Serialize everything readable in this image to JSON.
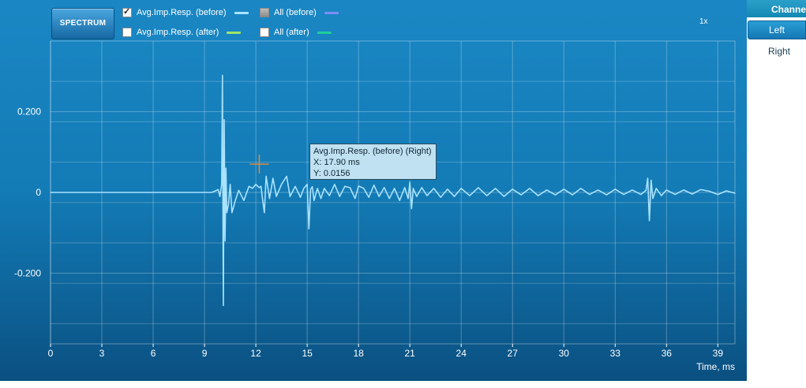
{
  "toolbar": {
    "spectrum_label": "SPECTRUM",
    "zoom_label": "1x"
  },
  "legend": [
    {
      "label": "Avg.Imp.Resp. (before)",
      "checked": true,
      "color": "#a9e3ff"
    },
    {
      "label": "All (before)",
      "checked": "partial",
      "color": "#7d8ff5"
    },
    {
      "label": "Avg.Imp.Resp. (after)",
      "checked": false,
      "color": "#9ee36a"
    },
    {
      "label": "All (after)",
      "checked": false,
      "color": "#1fcf9c"
    }
  ],
  "channel_selector": {
    "title": "Channe",
    "options": [
      "Left",
      "Right"
    ],
    "selected": "Left"
  },
  "tooltip": {
    "title": "Avg.Imp.Resp. (before) (Right)",
    "x_text": "X: 17.90 ms",
    "y_text": "Y: 0.0156"
  },
  "chart_data": {
    "type": "line",
    "xlabel": "Time, ms",
    "ylabel": "",
    "xlim": [
      0,
      40
    ],
    "ylim": [
      -0.375,
      0.375
    ],
    "x_ticks": [
      0,
      3,
      6,
      9,
      12,
      15,
      18,
      21,
      24,
      27,
      30,
      33,
      36,
      39
    ],
    "x_tick_labels": [
      "0",
      "3",
      "6",
      "9",
      "12",
      "15",
      "18",
      "21",
      "24",
      "27",
      "30",
      "33",
      "36",
      "39"
    ],
    "y_ticks": [
      0.2,
      0,
      -0.2
    ],
    "y_tick_labels": [
      "0.200",
      "0",
      "-0.200"
    ],
    "grid": true,
    "cursor": {
      "x": 12.2,
      "y": 0.07
    },
    "series": [
      {
        "name": "Avg.Imp.Resp. (before)",
        "color": "#a9e3ff",
        "x": [
          0,
          9.4,
          9.6,
          9.8,
          9.9,
          10.0,
          10.05,
          10.1,
          10.15,
          10.2,
          10.25,
          10.3,
          10.4,
          10.5,
          10.6,
          10.8,
          11.0,
          11.3,
          11.6,
          11.8,
          12.0,
          12.2,
          12.3,
          12.4,
          12.5,
          12.6,
          12.8,
          13.0,
          13.2,
          13.5,
          13.8,
          14.0,
          14.3,
          14.6,
          14.8,
          15.0,
          15.1,
          15.2,
          15.3,
          15.4,
          15.6,
          15.8,
          16.0,
          16.3,
          16.6,
          16.9,
          17.2,
          17.5,
          17.8,
          18.0,
          18.3,
          18.6,
          18.9,
          19.2,
          19.5,
          19.8,
          20.1,
          20.4,
          20.7,
          20.9,
          21.0,
          21.1,
          21.2,
          21.4,
          21.7,
          22.0,
          22.4,
          22.8,
          23.2,
          23.6,
          24.0,
          24.5,
          25.0,
          25.5,
          26.0,
          26.5,
          27.0,
          27.5,
          28.0,
          28.5,
          29.0,
          29.5,
          30.0,
          30.5,
          31.0,
          31.5,
          32.0,
          32.5,
          33.0,
          33.5,
          34.0,
          34.5,
          34.8,
          34.9,
          35.0,
          35.1,
          35.2,
          35.4,
          35.7,
          36.0,
          36.5,
          37.0,
          37.5,
          38.0,
          38.5,
          39.0,
          39.5,
          40.0
        ],
        "y": [
          0,
          0,
          0.003,
          0.007,
          -0.01,
          0.02,
          0.29,
          -0.28,
          0.18,
          -0.12,
          0.06,
          -0.05,
          -0.03,
          0.02,
          -0.05,
          -0.02,
          0.005,
          -0.02,
          0.015,
          0.01,
          0.02,
          0.012,
          0.015,
          -0.02,
          -0.05,
          0.04,
          -0.015,
          0.035,
          -0.01,
          0.02,
          0.04,
          -0.01,
          0.015,
          -0.012,
          0.01,
          0.02,
          -0.09,
          0.008,
          0.014,
          -0.02,
          0.01,
          -0.015,
          0.01,
          -0.008,
          0.02,
          -0.01,
          0.015,
          0.012,
          -0.015,
          0.016,
          0.01,
          -0.012,
          0.018,
          -0.01,
          0.012,
          -0.015,
          0.01,
          -0.02,
          0.012,
          -0.015,
          0.025,
          -0.04,
          0.01,
          -0.01,
          0.012,
          -0.008,
          0.01,
          -0.012,
          0.008,
          -0.01,
          0.01,
          -0.008,
          0.012,
          -0.008,
          0.01,
          -0.01,
          0.008,
          -0.006,
          0.01,
          -0.008,
          0.006,
          -0.006,
          0.008,
          -0.006,
          0.01,
          -0.005,
          0.006,
          -0.006,
          0.008,
          -0.005,
          0.006,
          -0.005,
          0.005,
          0.035,
          -0.07,
          0.03,
          -0.015,
          0.01,
          -0.008,
          0.006,
          -0.005,
          0.006,
          -0.004,
          0.007,
          0.003,
          -0.005,
          0.004,
          -0.002
        ]
      }
    ]
  }
}
